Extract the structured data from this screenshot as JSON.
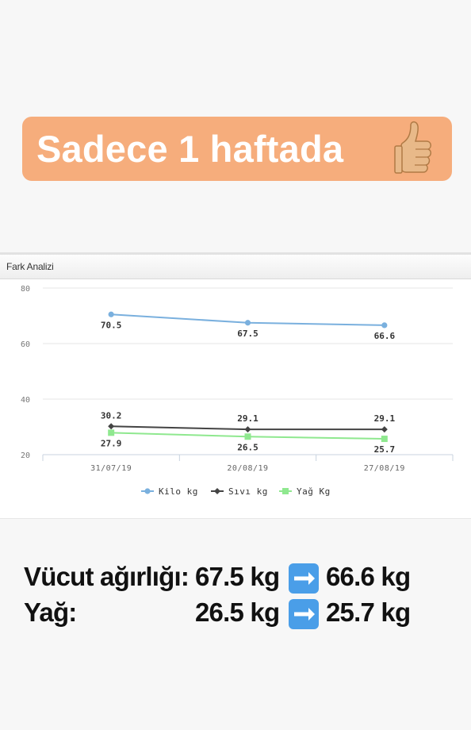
{
  "banner": {
    "text": "Sadece 1 haftada",
    "emoji_icon": "thumbs-up-icon",
    "bg_color": "#f6ad7c"
  },
  "panel": {
    "title": "Fark Analizi"
  },
  "chart_data": {
    "type": "line",
    "categories": [
      "31/07/19",
      "20/08/19",
      "27/08/19"
    ],
    "ylim": [
      20,
      80
    ],
    "yticks": [
      20,
      40,
      60,
      80
    ],
    "grid": true,
    "legend_position": "bottom",
    "series": [
      {
        "name": "Kilo kg",
        "values": [
          70.5,
          67.5,
          66.6
        ],
        "labels": [
          "70.5",
          "67.5",
          "66.6"
        ],
        "color": "#7ab0de",
        "marker": "circle"
      },
      {
        "name": "Sıvı kg",
        "values": [
          30.2,
          29.1,
          29.1
        ],
        "labels": [
          "30.2",
          "29.1",
          "29.1"
        ],
        "color": "#444444",
        "marker": "diamond"
      },
      {
        "name": "Yağ Kg",
        "values": [
          27.9,
          26.5,
          25.7
        ],
        "labels": [
          "27.9",
          "26.5",
          "25.7"
        ],
        "color": "#8fe88f",
        "marker": "square"
      }
    ]
  },
  "stats": {
    "rows": [
      {
        "label": "Vücut ağırlığı:",
        "from": "67.5 kg",
        "to": "66.6 kg",
        "arrow_icon": "right-arrow-icon"
      },
      {
        "label": "Yağ:",
        "from": "26.5 kg",
        "to": "25.7 kg",
        "arrow_icon": "right-arrow-icon"
      }
    ]
  }
}
